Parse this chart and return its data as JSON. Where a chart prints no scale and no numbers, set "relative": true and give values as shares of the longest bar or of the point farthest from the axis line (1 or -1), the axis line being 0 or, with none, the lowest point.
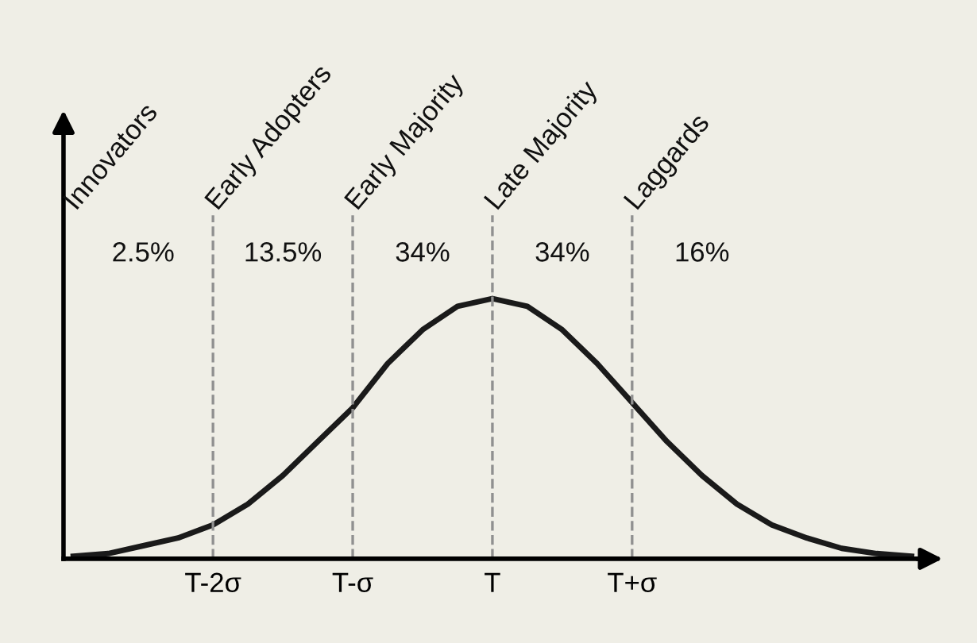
{
  "chart_data": {
    "type": "line",
    "relative": true,
    "categories": [
      null,
      null,
      null,
      null,
      "T-2σ",
      null,
      null,
      null,
      "T-σ",
      null,
      null,
      null,
      "T",
      null,
      null,
      null,
      "T+σ",
      null,
      null,
      null,
      null,
      null,
      null,
      null,
      null
    ],
    "series": [
      {
        "color": "#1a1a1a",
        "values": [
          0.01,
          0.02,
          0.05,
          0.08,
          0.13,
          0.21,
          0.32,
          0.45,
          0.58,
          0.75,
          0.88,
          0.97,
          1.0,
          0.97,
          0.88,
          0.75,
          0.6,
          0.45,
          0.32,
          0.21,
          0.13,
          0.08,
          0.04,
          0.02,
          0.01
        ]
      }
    ],
    "ref_lines": [
      {
        "axis": "x",
        "value": "T-2σ",
        "color": "#909090",
        "line_style": "dashed"
      },
      {
        "axis": "x",
        "value": "T-σ",
        "color": "#909090",
        "line_style": "dashed"
      },
      {
        "axis": "x",
        "value": "T",
        "color": "#909090",
        "line_style": "dashed"
      },
      {
        "axis": "x",
        "value": "T+σ",
        "color": "#909090",
        "line_style": "dashed"
      }
    ],
    "annotations": [
      "Innovators",
      "Early Adopters",
      "Early Majority",
      "Late Majority",
      "Laggards",
      "2.5%",
      "13.5%",
      "34%",
      "34%",
      "16%"
    ],
    "grid": false,
    "legend": false,
    "marker": "none",
    "line_style": "solid"
  }
}
